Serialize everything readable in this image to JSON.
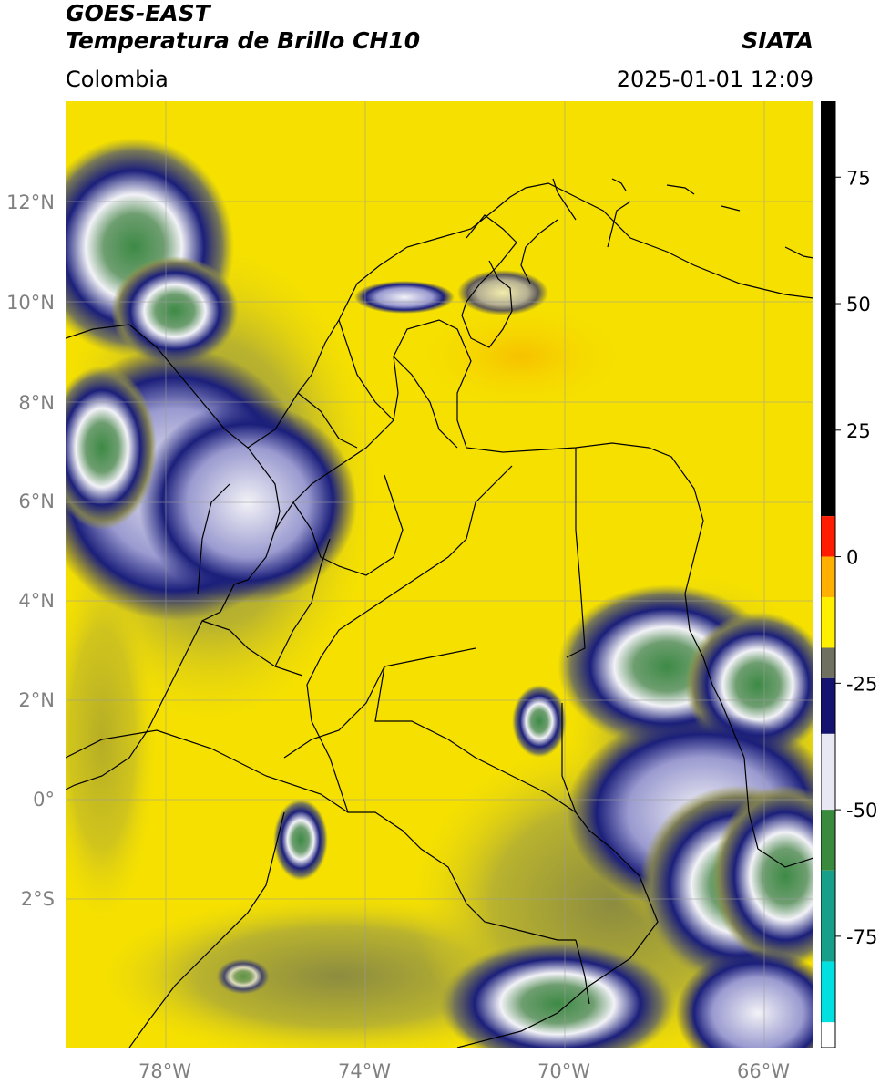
{
  "header": {
    "satellite": "GOES-EAST",
    "product": "Temperatura de Brillo CH10",
    "region": "Colombia",
    "agency": "SIATA",
    "datetime": "2025-01-01 12:09"
  },
  "map": {
    "lon_ticks": [
      "78°W",
      "74°W",
      "70°W",
      "66°W"
    ],
    "lat_ticks": [
      "12°N",
      "10°N",
      "8°N",
      "6°N",
      "4°N",
      "2°N",
      "0°",
      "2°S"
    ],
    "lon_range": [
      -80.0,
      -65.0
    ],
    "lat_range": [
      -4.7,
      14.0
    ],
    "gridlines": true,
    "colors": {
      "background_warm": "#f5e000",
      "dry_olive": "#a3a03a",
      "cloud_navy": "#1b1f7a",
      "cloud_white": "#f2f2f7",
      "cloud_green": "#3d8a45",
      "border": "#000000",
      "gridline": "#9c9c9c"
    }
  },
  "colorbar": {
    "ticks": [
      "75",
      "50",
      "25",
      "0",
      "-25",
      "-50",
      "-75"
    ],
    "range": [
      -97,
      90
    ],
    "segments": [
      {
        "from": 8,
        "to": 90,
        "color": "#000000"
      },
      {
        "from": 0,
        "to": 8,
        "color": "#ff1c00"
      },
      {
        "from": -8,
        "to": 0,
        "color": "#ffb000"
      },
      {
        "from": -18,
        "to": -8,
        "color": "#fff000"
      },
      {
        "from": -24,
        "to": -18,
        "color": "#707060"
      },
      {
        "from": -35,
        "to": -24,
        "color": "#141470"
      },
      {
        "from": -50,
        "to": -35,
        "color": "#e8e8f4"
      },
      {
        "from": -62,
        "to": -50,
        "color": "#3a8a3e"
      },
      {
        "from": -80,
        "to": -62,
        "color": "#16a08a"
      },
      {
        "from": -92,
        "to": -80,
        "color": "#00e0e0"
      },
      {
        "from": -97,
        "to": -92,
        "color": "#ffffff"
      }
    ]
  }
}
